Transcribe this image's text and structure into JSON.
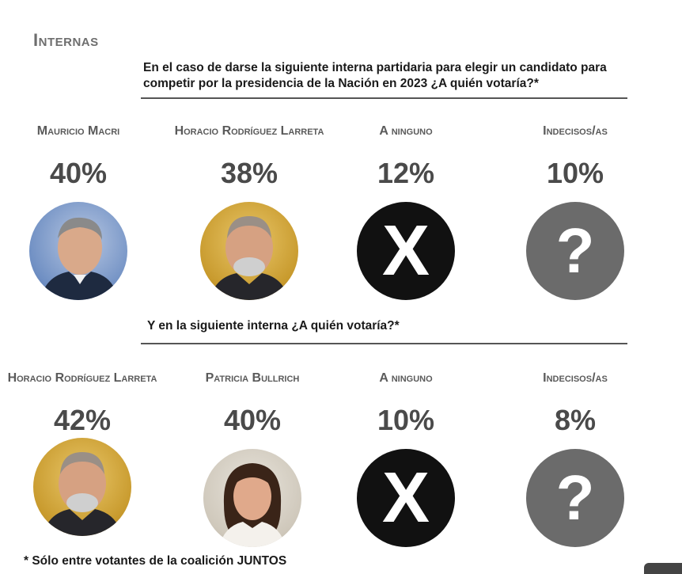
{
  "section_title": "Internas",
  "questions": [
    "En el caso de darse la siguiente interna partidaria para elegir un candidato para competir por la presidencia de la Nación en 2023 ¿A quién votaría?*",
    "Y en la siguiente interna ¿A quién votaría?*"
  ],
  "footnote": "* Sólo entre votantes de la coalición JUNTOS",
  "chart_data": [
    {
      "type": "bar",
      "title": "En el caso de darse la siguiente interna partidaria para elegir un candidato para competir por la presidencia de la Nación en 2023 ¿A quién votaría?*",
      "categories": [
        "Mauricio Macri",
        "Horacio Rodríguez Larreta",
        "A ninguno",
        "Indecisos/as"
      ],
      "values": [
        40,
        38,
        12,
        10
      ],
      "labels": [
        "40%",
        "38%",
        "12%",
        "10%"
      ],
      "icons": [
        "photo-macri",
        "photo-larreta",
        "x-icon",
        "question-icon"
      ]
    },
    {
      "type": "bar",
      "title": "Y en la siguiente interna ¿A quién votaría?*",
      "categories": [
        "Horacio Rodríguez Larreta",
        "Patricia Bullrich",
        "A ninguno",
        "Indecisos/as"
      ],
      "values": [
        42,
        40,
        10,
        8
      ],
      "labels": [
        "42%",
        "40%",
        "10%",
        "8%"
      ],
      "icons": [
        "photo-larreta",
        "photo-bullrich",
        "x-icon",
        "question-icon"
      ]
    }
  ],
  "glyphs": {
    "x": "X",
    "q": "?"
  },
  "colors": {
    "x_circle": "#111111",
    "q_circle": "#6b6b6b",
    "title": "#6e6e6e"
  }
}
